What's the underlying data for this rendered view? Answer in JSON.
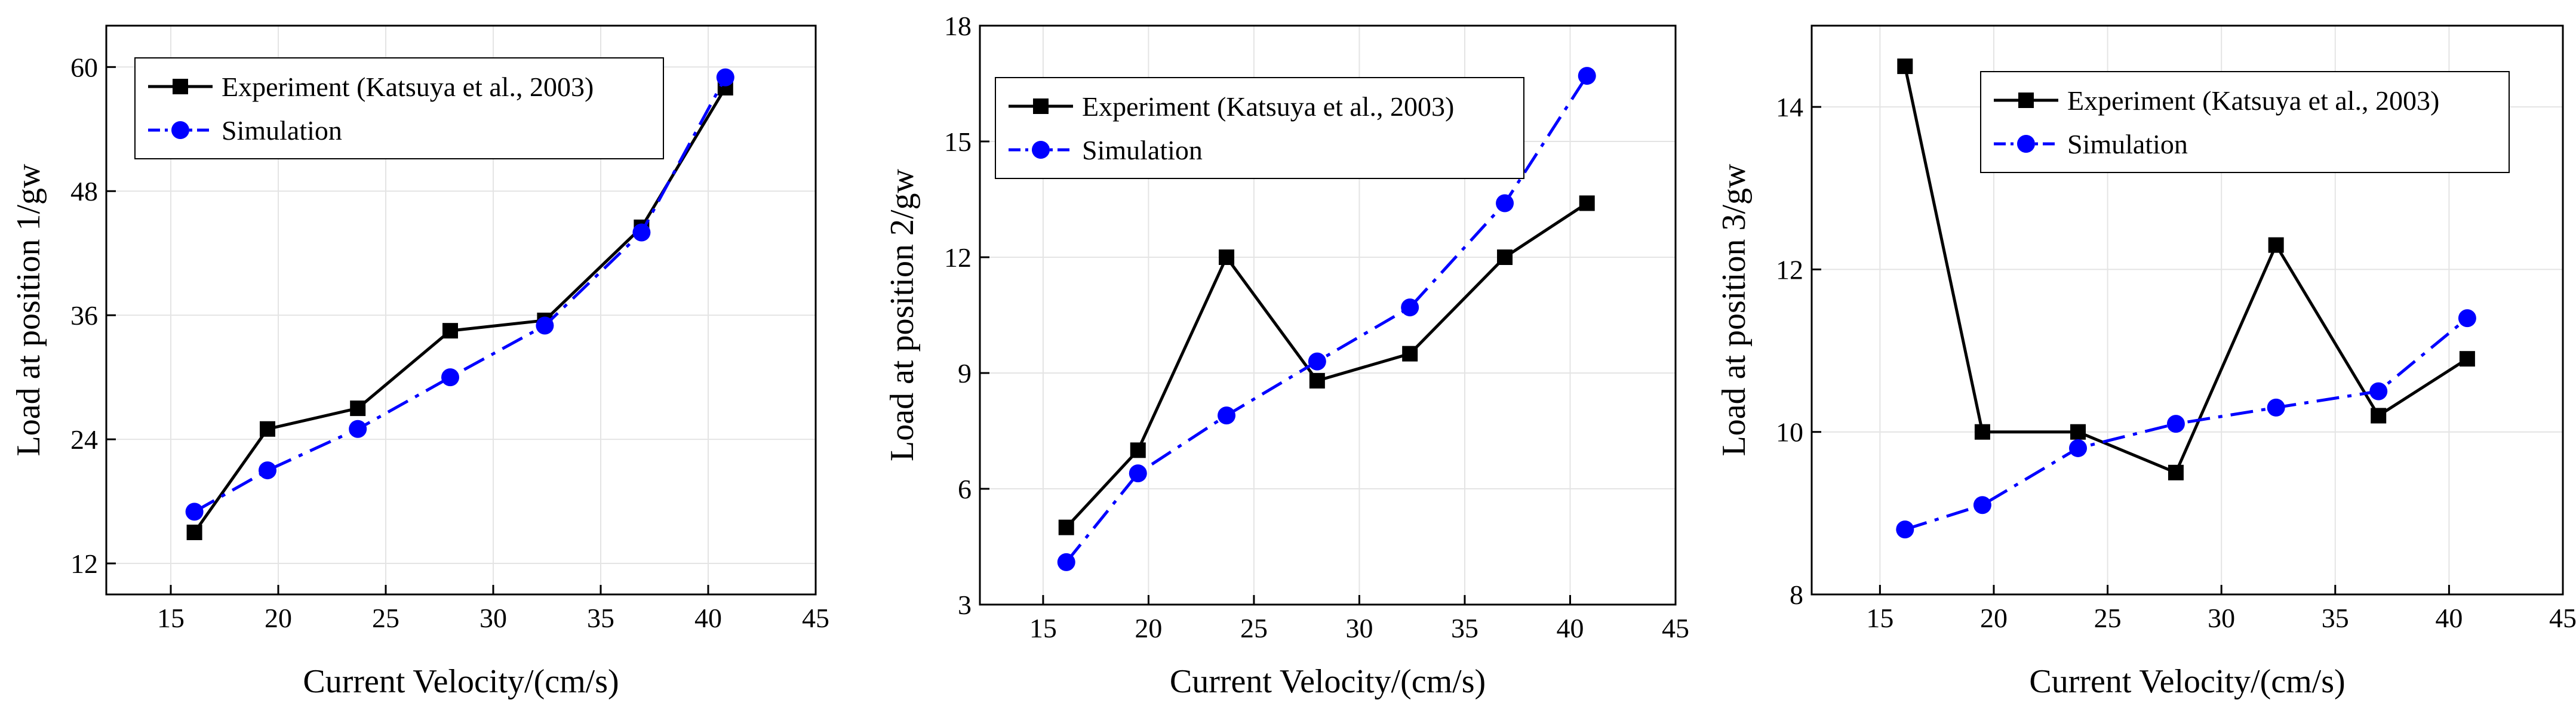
{
  "chart_data": [
    {
      "type": "line",
      "title": "",
      "xlabel": "Current Velocity/(cm/s)",
      "ylabel": "Load at position 1/gw",
      "xlim": [
        12,
        45
      ],
      "ylim": [
        9,
        64
      ],
      "xticks": [
        "15",
        "20",
        "25",
        "30",
        "35",
        "40",
        "45"
      ],
      "yticks": [
        "12",
        "24",
        "36",
        "48",
        "60"
      ],
      "grid": true,
      "legend_position": "top-left",
      "series": [
        {
          "name": "Experiment (Katsuya et al., 2003)",
          "color": "#000000",
          "marker": "square",
          "line_style": "solid",
          "x": [
            16.1,
            19.5,
            23.7,
            28.0,
            32.4,
            36.9,
            40.8
          ],
          "y": [
            15.0,
            25.0,
            27.0,
            34.5,
            35.5,
            44.5,
            58.0
          ]
        },
        {
          "name": "Simulation",
          "color": "#0000ff",
          "marker": "circle",
          "line_style": "dash-dot",
          "x": [
            16.1,
            19.5,
            23.7,
            28.0,
            32.4,
            36.9,
            40.8
          ],
          "y": [
            17.0,
            21.0,
            25.0,
            30.0,
            35.0,
            44.0,
            59.0
          ]
        }
      ]
    },
    {
      "type": "line",
      "title": "",
      "xlabel": "Current Velocity/(cm/s)",
      "ylabel": "Load at position 2/gw",
      "xlim": [
        12,
        45
      ],
      "ylim": [
        3,
        18
      ],
      "xticks": [
        "15",
        "20",
        "25",
        "30",
        "35",
        "40",
        "45"
      ],
      "yticks": [
        "3",
        "6",
        "9",
        "12",
        "15",
        "18"
      ],
      "grid": true,
      "legend_position": "top-left",
      "series": [
        {
          "name": "Experiment (Katsuya et al., 2003)",
          "color": "#000000",
          "marker": "square",
          "line_style": "solid",
          "x": [
            16.1,
            19.5,
            23.7,
            28.0,
            32.4,
            36.9,
            40.8
          ],
          "y": [
            5.0,
            7.0,
            12.0,
            8.8,
            9.5,
            12.0,
            13.4
          ]
        },
        {
          "name": "Simulation",
          "color": "#0000ff",
          "marker": "circle",
          "line_style": "dash-dot",
          "x": [
            16.1,
            19.5,
            23.7,
            28.0,
            32.4,
            36.9,
            40.8
          ],
          "y": [
            4.1,
            6.4,
            7.9,
            9.3,
            10.7,
            13.4,
            16.7
          ]
        }
      ]
    },
    {
      "type": "line",
      "title": "",
      "xlabel": "Current Velocity/(cm/s)",
      "ylabel": "Load at position 3/gw",
      "xlim": [
        12,
        45
      ],
      "ylim": [
        8,
        15
      ],
      "xticks": [
        "15",
        "20",
        "25",
        "30",
        "35",
        "40",
        "45"
      ],
      "yticks": [
        "8",
        "10",
        "12",
        "14"
      ],
      "grid": true,
      "legend_position": "top-right",
      "series": [
        {
          "name": "Experiment (Katsuya et al., 2003)",
          "color": "#000000",
          "marker": "square",
          "line_style": "solid",
          "x": [
            16.1,
            19.5,
            23.7,
            28.0,
            32.4,
            36.9,
            40.8
          ],
          "y": [
            14.5,
            10.0,
            10.0,
            9.5,
            12.3,
            10.2,
            10.9
          ]
        },
        {
          "name": "Simulation",
          "color": "#0000ff",
          "marker": "circle",
          "line_style": "dash-dot",
          "x": [
            16.1,
            19.5,
            23.7,
            28.0,
            32.4,
            36.9,
            40.8
          ],
          "y": [
            8.8,
            9.1,
            9.8,
            10.1,
            10.3,
            10.5,
            11.4
          ]
        }
      ]
    }
  ]
}
